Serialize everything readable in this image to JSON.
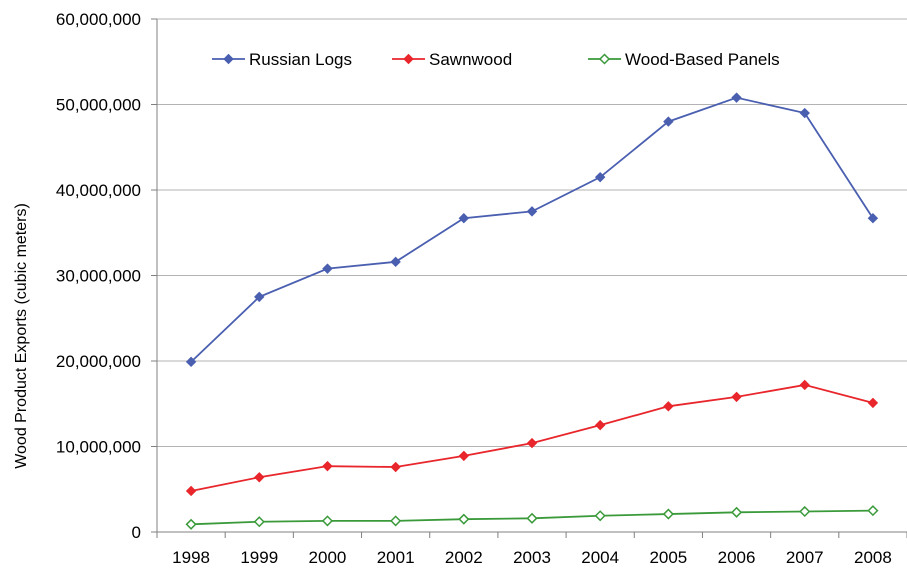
{
  "chart_data": {
    "type": "line",
    "title": "",
    "xlabel": "",
    "ylabel": "Wood Product Exports (cubic meters)",
    "categories": [
      "1998",
      "1999",
      "2000",
      "2001",
      "2002",
      "2003",
      "2004",
      "2005",
      "2006",
      "2007",
      "2008"
    ],
    "y_ticks": [
      0,
      10000000,
      20000000,
      30000000,
      40000000,
      50000000,
      60000000
    ],
    "y_tick_labels": [
      "0",
      "10,000,000",
      "20,000,000",
      "30,000,000",
      "40,000,000",
      "50,000,000",
      "60,000,000"
    ],
    "ylim": [
      0,
      60000000
    ],
    "grid": "horizontal",
    "legend_position": "top-inside",
    "series": [
      {
        "name": "Russian Logs",
        "color": "#4a5fb0",
        "marker": "filled-diamond",
        "values": [
          19900000,
          27500000,
          30800000,
          31600000,
          36700000,
          37500000,
          41500000,
          48000000,
          50800000,
          49000000,
          36700000
        ]
      },
      {
        "name": "Sawnwood",
        "color": "#e8262b",
        "marker": "filled-diamond",
        "values": [
          4800000,
          6400000,
          7700000,
          7600000,
          8900000,
          10400000,
          12500000,
          14700000,
          15800000,
          17200000,
          15100000
        ]
      },
      {
        "name": "Wood-Based Panels",
        "color": "#3a9a3a",
        "marker": "hollow-diamond",
        "values": [
          900000,
          1200000,
          1300000,
          1300000,
          1500000,
          1600000,
          1900000,
          2100000,
          2300000,
          2400000,
          2500000
        ]
      }
    ]
  }
}
